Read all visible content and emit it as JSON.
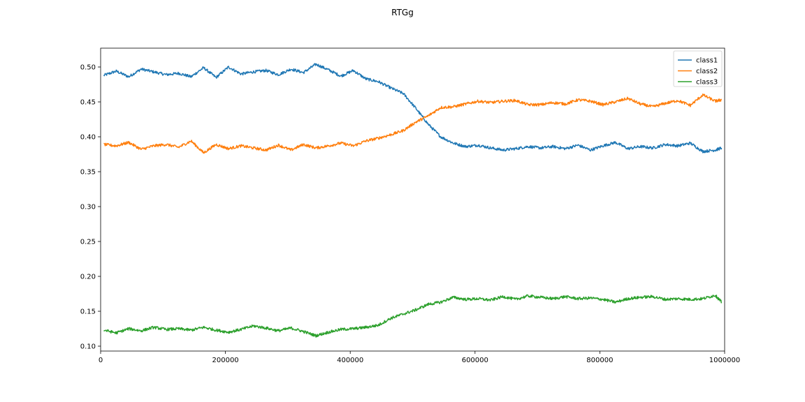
{
  "chart_data": {
    "type": "line",
    "title": "RTGg",
    "xlabel": "",
    "ylabel": "",
    "xlim": [
      0,
      1000000
    ],
    "ylim": [
      0.093,
      0.527
    ],
    "x_ticks": [
      0,
      200000,
      400000,
      600000,
      800000,
      1000000
    ],
    "x_tick_labels": [
      "0",
      "200000",
      "400000",
      "600000",
      "800000",
      "1000000"
    ],
    "y_ticks": [
      0.1,
      0.15,
      0.2,
      0.25,
      0.3,
      0.35,
      0.4,
      0.45,
      0.5
    ],
    "y_tick_labels": [
      "0.10",
      "0.15",
      "0.20",
      "0.25",
      "0.30",
      "0.35",
      "0.40",
      "0.45",
      "0.50"
    ],
    "grid": false,
    "legend": "top-right",
    "x": [
      5000,
      25000,
      45000,
      65000,
      85000,
      105000,
      125000,
      145000,
      165000,
      185000,
      205000,
      225000,
      245000,
      265000,
      285000,
      305000,
      325000,
      345000,
      365000,
      385000,
      405000,
      425000,
      445000,
      465000,
      485000,
      505000,
      525000,
      545000,
      565000,
      585000,
      605000,
      625000,
      645000,
      665000,
      685000,
      705000,
      725000,
      745000,
      765000,
      785000,
      805000,
      825000,
      845000,
      865000,
      885000,
      905000,
      925000,
      945000,
      965000,
      985000,
      995000
    ],
    "series": [
      {
        "name": "class1",
        "color": "#1f77b4",
        "values": [
          0.488,
          0.494,
          0.486,
          0.497,
          0.493,
          0.489,
          0.491,
          0.486,
          0.499,
          0.485,
          0.5,
          0.49,
          0.493,
          0.495,
          0.489,
          0.497,
          0.492,
          0.504,
          0.496,
          0.487,
          0.495,
          0.483,
          0.479,
          0.47,
          0.462,
          0.441,
          0.418,
          0.4,
          0.391,
          0.386,
          0.388,
          0.384,
          0.381,
          0.383,
          0.386,
          0.384,
          0.386,
          0.383,
          0.388,
          0.381,
          0.387,
          0.392,
          0.383,
          0.386,
          0.384,
          0.389,
          0.387,
          0.391,
          0.379,
          0.381,
          0.384
        ]
      },
      {
        "name": "class2",
        "color": "#ff7f0e",
        "values": [
          0.389,
          0.387,
          0.392,
          0.382,
          0.387,
          0.389,
          0.385,
          0.394,
          0.377,
          0.389,
          0.383,
          0.387,
          0.384,
          0.381,
          0.388,
          0.381,
          0.389,
          0.384,
          0.387,
          0.391,
          0.387,
          0.394,
          0.398,
          0.403,
          0.409,
          0.421,
          0.43,
          0.442,
          0.443,
          0.447,
          0.451,
          0.449,
          0.451,
          0.452,
          0.446,
          0.446,
          0.449,
          0.447,
          0.453,
          0.451,
          0.446,
          0.45,
          0.455,
          0.447,
          0.443,
          0.448,
          0.452,
          0.445,
          0.46,
          0.451,
          0.453
        ]
      },
      {
        "name": "class3",
        "color": "#2ca02c",
        "values": [
          0.123,
          0.119,
          0.125,
          0.122,
          0.127,
          0.124,
          0.125,
          0.123,
          0.127,
          0.123,
          0.12,
          0.124,
          0.129,
          0.126,
          0.122,
          0.126,
          0.121,
          0.115,
          0.12,
          0.124,
          0.125,
          0.127,
          0.13,
          0.14,
          0.146,
          0.152,
          0.16,
          0.163,
          0.17,
          0.167,
          0.168,
          0.166,
          0.171,
          0.167,
          0.172,
          0.17,
          0.168,
          0.171,
          0.168,
          0.169,
          0.167,
          0.163,
          0.168,
          0.17,
          0.171,
          0.167,
          0.168,
          0.167,
          0.168,
          0.173,
          0.163
        ]
      }
    ]
  }
}
